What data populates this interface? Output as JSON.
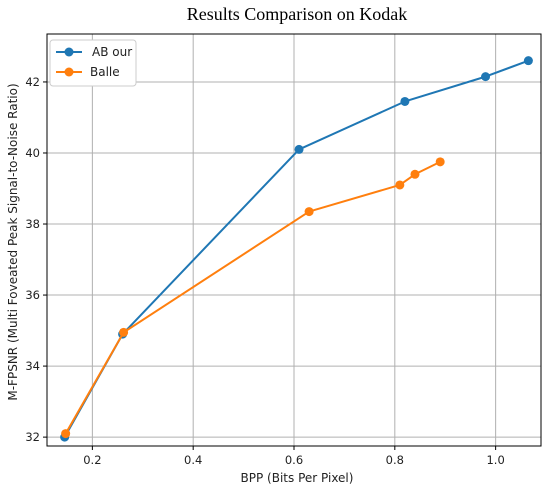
{
  "chart_data": {
    "type": "line",
    "title": "Results Comparison on Kodak",
    "xlabel": "BPP (Bits Per Pixel)",
    "ylabel": "M-FPSNR (Multi Foveated Peak Signal-to-Noise Ratio)",
    "xlim": [
      0.11,
      1.09
    ],
    "ylim": [
      31.75,
      43.35
    ],
    "xticks": [
      0.2,
      0.4,
      0.6,
      0.8,
      1.0
    ],
    "xtick_labels": [
      "0.2",
      "0.4",
      "0.6",
      "0.8",
      "1.0"
    ],
    "yticks": [
      32,
      34,
      36,
      38,
      40,
      42
    ],
    "ytick_labels": [
      "32",
      "34",
      "36",
      "38",
      "40",
      "42"
    ],
    "grid": true,
    "legend_position": "top-left",
    "series": [
      {
        "name": "AB our",
        "color": "#1f77b4",
        "x": [
          0.145,
          0.26,
          0.61,
          0.82,
          0.98,
          1.065
        ],
        "y": [
          32.0,
          34.9,
          40.1,
          41.45,
          42.15,
          42.6
        ]
      },
      {
        "name": "Balle",
        "color": "#ff7f0e",
        "x": [
          0.147,
          0.262,
          0.63,
          0.81,
          0.84,
          0.89
        ],
        "y": [
          32.1,
          34.95,
          38.35,
          39.1,
          39.4,
          39.75
        ]
      }
    ]
  }
}
